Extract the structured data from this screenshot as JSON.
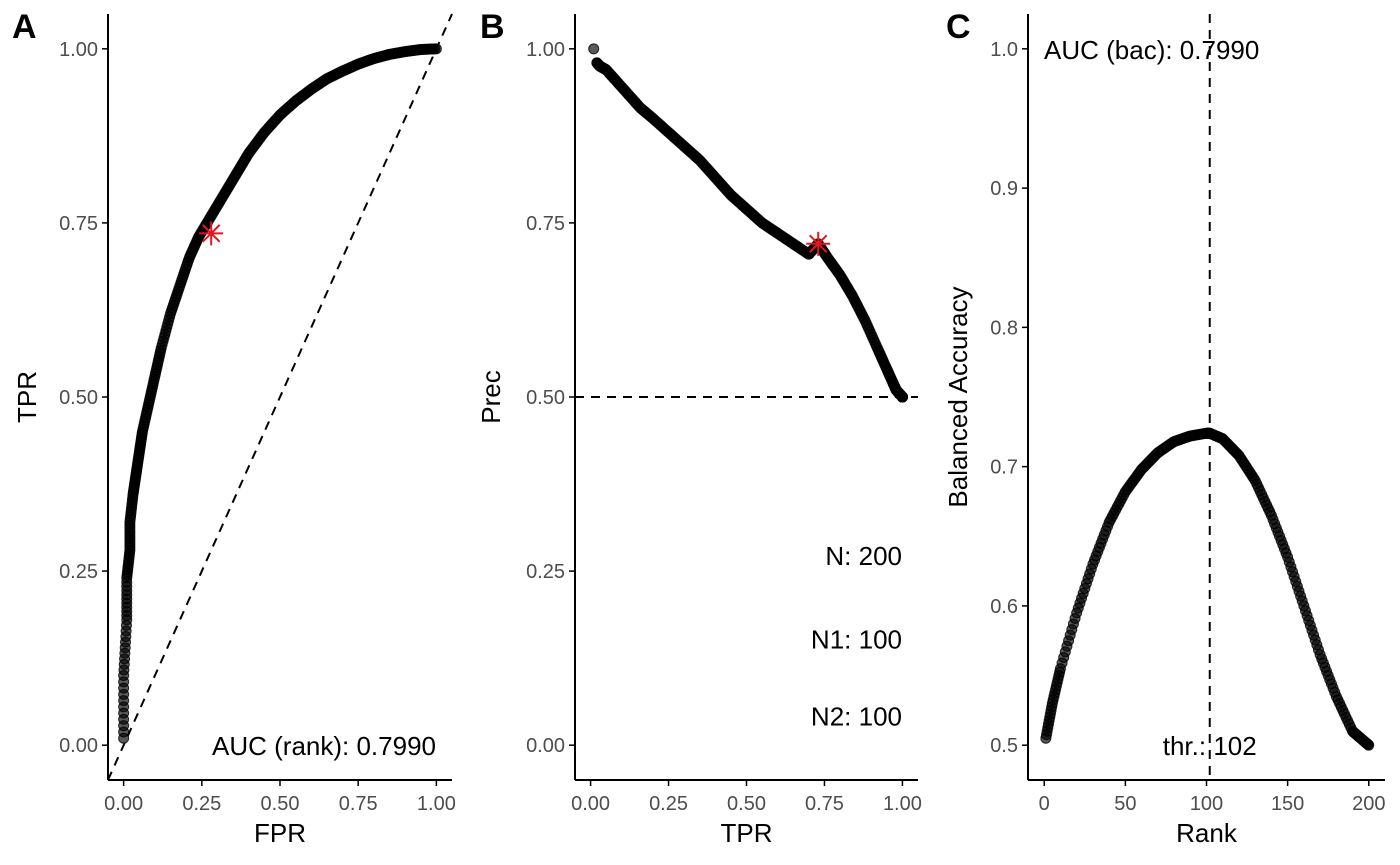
{
  "chart_data": [
    {
      "panel": "A",
      "type": "scatter",
      "xlabel": "FPR",
      "ylabel": "TPR",
      "xlim": [
        -0.05,
        1.05
      ],
      "ylim": [
        -0.05,
        1.05
      ],
      "x_ticks": [
        "0.00",
        "0.25",
        "0.50",
        "0.75",
        "1.00"
      ],
      "y_ticks": [
        "0.00",
        "0.25",
        "0.50",
        "0.75",
        "1.00"
      ],
      "x_tick_values": [
        0,
        0.25,
        0.5,
        0.75,
        1
      ],
      "y_tick_values": [
        0,
        0.25,
        0.5,
        0.75,
        1
      ],
      "curve": {
        "x": [
          0.0,
          0.0,
          0.01,
          0.01,
          0.02,
          0.02,
          0.03,
          0.04,
          0.05,
          0.06,
          0.08,
          0.1,
          0.12,
          0.15,
          0.18,
          0.21,
          0.24,
          0.28,
          0.32,
          0.36,
          0.4,
          0.45,
          0.5,
          0.55,
          0.6,
          0.65,
          0.7,
          0.75,
          0.8,
          0.85,
          0.9,
          0.95,
          1.0
        ],
        "y": [
          0.01,
          0.1,
          0.18,
          0.24,
          0.28,
          0.32,
          0.36,
          0.39,
          0.42,
          0.45,
          0.49,
          0.53,
          0.57,
          0.62,
          0.66,
          0.7,
          0.73,
          0.76,
          0.79,
          0.82,
          0.85,
          0.88,
          0.905,
          0.925,
          0.942,
          0.957,
          0.968,
          0.978,
          0.986,
          0.992,
          0.996,
          0.999,
          1.0
        ]
      },
      "reference_line": {
        "style": "dashed",
        "slope": 1,
        "intercept": 0
      },
      "highlight": {
        "x": 0.28,
        "y": 0.735,
        "color": "#e3161b",
        "marker": "asterisk"
      },
      "annotation": "AUC (rank): 0.7990"
    },
    {
      "panel": "B",
      "type": "scatter",
      "xlabel": "TPR",
      "ylabel": "Prec",
      "xlim": [
        -0.05,
        1.05
      ],
      "ylim": [
        -0.05,
        1.05
      ],
      "x_ticks": [
        "0.00",
        "0.25",
        "0.50",
        "0.75",
        "1.00"
      ],
      "y_ticks": [
        "0.00",
        "0.25",
        "0.50",
        "0.75",
        "1.00"
      ],
      "x_tick_values": [
        0,
        0.25,
        0.5,
        0.75,
        1
      ],
      "y_tick_values": [
        0,
        0.25,
        0.5,
        0.75,
        1
      ],
      "curve": {
        "x": [
          0.02,
          0.03,
          0.05,
          0.08,
          0.12,
          0.16,
          0.2,
          0.25,
          0.3,
          0.35,
          0.4,
          0.45,
          0.5,
          0.55,
          0.6,
          0.65,
          0.7,
          0.73,
          0.76,
          0.8,
          0.84,
          0.88,
          0.92,
          0.95,
          0.97,
          0.98,
          0.99,
          1.0,
          1.0
        ],
        "y": [
          0.98,
          0.975,
          0.97,
          0.955,
          0.935,
          0.915,
          0.9,
          0.88,
          0.86,
          0.84,
          0.815,
          0.79,
          0.77,
          0.75,
          0.735,
          0.72,
          0.705,
          0.72,
          0.7,
          0.675,
          0.645,
          0.61,
          0.57,
          0.54,
          0.52,
          0.51,
          0.505,
          0.5,
          0.5
        ]
      },
      "first_point": {
        "x": 0.01,
        "y": 1.0
      },
      "reference_line": {
        "style": "dashed",
        "y": 0.5
      },
      "highlight": {
        "x": 0.73,
        "y": 0.72,
        "color": "#e3161b",
        "marker": "asterisk"
      },
      "annotations": [
        "N: 200",
        "N1: 100",
        "N2: 100"
      ]
    },
    {
      "panel": "C",
      "type": "scatter",
      "xlabel": "Rank",
      "ylabel": "Balanced Accuracy",
      "xlim": [
        -10,
        210
      ],
      "ylim": [
        0.475,
        1.025
      ],
      "x_ticks": [
        "0",
        "50",
        "100",
        "150",
        "200"
      ],
      "y_ticks": [
        "0.5",
        "0.6",
        "0.7",
        "0.8",
        "0.9",
        "1.0"
      ],
      "x_tick_values": [
        0,
        50,
        100,
        150,
        200
      ],
      "y_tick_values": [
        0.5,
        0.6,
        0.7,
        0.8,
        0.9,
        1.0
      ],
      "curve": {
        "x": [
          1,
          5,
          10,
          20,
          30,
          40,
          50,
          60,
          70,
          80,
          90,
          100,
          102,
          110,
          120,
          130,
          140,
          150,
          160,
          170,
          180,
          190,
          195,
          200
        ],
        "y": [
          0.505,
          0.53,
          0.555,
          0.595,
          0.63,
          0.66,
          0.682,
          0.698,
          0.71,
          0.718,
          0.722,
          0.724,
          0.724,
          0.72,
          0.708,
          0.69,
          0.665,
          0.635,
          0.6,
          0.565,
          0.535,
          0.51,
          0.505,
          0.5
        ]
      },
      "reference_line": {
        "style": "dashed",
        "x": 102
      },
      "annotations": [
        "AUC (bac): 0.7990",
        "thr.: 102"
      ]
    }
  ],
  "panel_tags": [
    "A",
    "B",
    "C"
  ],
  "colors": {
    "point": "#000000",
    "point_alpha": 0.65,
    "highlight": "#e3161b",
    "axis": "#000000",
    "tick_text": "#4d4d4d"
  }
}
